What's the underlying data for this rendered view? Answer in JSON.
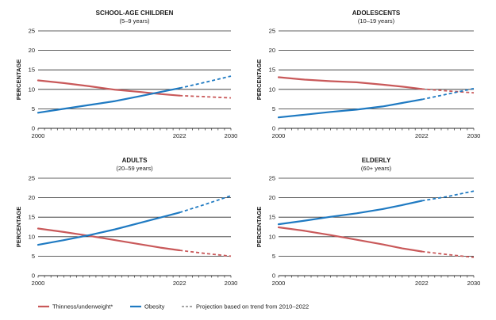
{
  "colors": {
    "thinness": "#c9595a",
    "obesity": "#1f7ac2",
    "grid": "#2b2b2b",
    "text": "#1a1a1a"
  },
  "legend": [
    {
      "key": "thinness",
      "label": "Thinness/underweight*",
      "style": "solid",
      "color": "#c9595a"
    },
    {
      "key": "obesity",
      "label": "Obesity",
      "style": "solid",
      "color": "#1f7ac2"
    },
    {
      "key": "projection",
      "label": "Projection based on trend from 2010–2022",
      "style": "dashed",
      "color": "#8a8a8a"
    }
  ],
  "chart_data": [
    {
      "type": "line",
      "title": "SCHOOL-AGE CHILDREN",
      "subtitle": "(5–9 years)",
      "ylabel": "PERCENTAGE",
      "ylim": [
        0,
        25
      ],
      "yticks": [
        0,
        5,
        10,
        15,
        20,
        25
      ],
      "xlim": [
        2000,
        2030
      ],
      "xticks": [
        2000,
        2022,
        2030
      ],
      "projection_start": 2022,
      "series": [
        {
          "name": "Thinness/underweight*",
          "key": "thinness",
          "points": [
            [
              2000,
              12.3
            ],
            [
              2004,
              11.6
            ],
            [
              2008,
              10.8
            ],
            [
              2012,
              9.9
            ],
            [
              2016,
              9.3
            ],
            [
              2019,
              8.8
            ],
            [
              2022,
              8.4
            ],
            [
              2026,
              8.1
            ],
            [
              2030,
              7.8
            ]
          ]
        },
        {
          "name": "Obesity",
          "key": "obesity",
          "points": [
            [
              2000,
              4.0
            ],
            [
              2004,
              5.0
            ],
            [
              2008,
              6.0
            ],
            [
              2012,
              7.0
            ],
            [
              2016,
              8.3
            ],
            [
              2019,
              9.3
            ],
            [
              2022,
              10.3
            ],
            [
              2026,
              11.8
            ],
            [
              2030,
              13.4
            ]
          ]
        }
      ]
    },
    {
      "type": "line",
      "title": "ADOLESCENTS",
      "subtitle": "(10–19 years)",
      "ylabel": "PERCENTAGE",
      "ylim": [
        0,
        25
      ],
      "yticks": [
        0,
        5,
        10,
        15,
        20,
        25
      ],
      "xlim": [
        2000,
        2030
      ],
      "xticks": [
        2000,
        2022,
        2030
      ],
      "projection_start": 2022,
      "series": [
        {
          "name": "Thinness/underweight*",
          "key": "thinness",
          "points": [
            [
              2000,
              13.1
            ],
            [
              2004,
              12.5
            ],
            [
              2008,
              12.1
            ],
            [
              2012,
              11.8
            ],
            [
              2016,
              11.2
            ],
            [
              2019,
              10.7
            ],
            [
              2022,
              10.1
            ],
            [
              2026,
              9.6
            ],
            [
              2030,
              9.1
            ]
          ]
        },
        {
          "name": "Obesity",
          "key": "obesity",
          "points": [
            [
              2000,
              2.8
            ],
            [
              2004,
              3.5
            ],
            [
              2008,
              4.2
            ],
            [
              2012,
              4.8
            ],
            [
              2016,
              5.6
            ],
            [
              2019,
              6.5
            ],
            [
              2022,
              7.4
            ],
            [
              2026,
              8.8
            ],
            [
              2030,
              10.2
            ]
          ]
        }
      ]
    },
    {
      "type": "line",
      "title": "ADULTS",
      "subtitle": "(20–59 years)",
      "ylabel": "PERCENTAGE",
      "ylim": [
        0,
        25
      ],
      "yticks": [
        0,
        5,
        10,
        15,
        20,
        25
      ],
      "xlim": [
        2000,
        2030
      ],
      "xticks": [
        2000,
        2022,
        2030
      ],
      "projection_start": 2022,
      "series": [
        {
          "name": "Thinness/underweight*",
          "key": "thinness",
          "points": [
            [
              2000,
              12.1
            ],
            [
              2004,
              11.2
            ],
            [
              2008,
              10.2
            ],
            [
              2012,
              9.1
            ],
            [
              2016,
              8.0
            ],
            [
              2019,
              7.2
            ],
            [
              2022,
              6.5
            ],
            [
              2026,
              5.7
            ],
            [
              2030,
              5.0
            ]
          ]
        },
        {
          "name": "Obesity",
          "key": "obesity",
          "points": [
            [
              2000,
              7.9
            ],
            [
              2004,
              9.1
            ],
            [
              2008,
              10.4
            ],
            [
              2012,
              11.9
            ],
            [
              2016,
              13.6
            ],
            [
              2019,
              14.9
            ],
            [
              2022,
              16.2
            ],
            [
              2026,
              18.3
            ],
            [
              2030,
              20.5
            ]
          ]
        }
      ]
    },
    {
      "type": "line",
      "title": "ELDERLY",
      "subtitle": "(60+ years)",
      "ylabel": "PERCENTAGE",
      "ylim": [
        0,
        25
      ],
      "yticks": [
        0,
        5,
        10,
        15,
        20,
        25
      ],
      "xlim": [
        2000,
        2030
      ],
      "xticks": [
        2000,
        2022,
        2030
      ],
      "projection_start": 2022,
      "series": [
        {
          "name": "Thinness/underweight*",
          "key": "thinness",
          "points": [
            [
              2000,
              12.4
            ],
            [
              2004,
              11.5
            ],
            [
              2008,
              10.4
            ],
            [
              2012,
              9.2
            ],
            [
              2016,
              8.0
            ],
            [
              2019,
              7.0
            ],
            [
              2022,
              6.2
            ],
            [
              2026,
              5.4
            ],
            [
              2030,
              4.7
            ]
          ]
        },
        {
          "name": "Obesity",
          "key": "obesity",
          "points": [
            [
              2000,
              13.2
            ],
            [
              2004,
              14.1
            ],
            [
              2008,
              15.1
            ],
            [
              2012,
              16.0
            ],
            [
              2016,
              17.1
            ],
            [
              2019,
              18.1
            ],
            [
              2022,
              19.2
            ],
            [
              2026,
              20.3
            ],
            [
              2030,
              21.7
            ]
          ]
        }
      ]
    }
  ]
}
